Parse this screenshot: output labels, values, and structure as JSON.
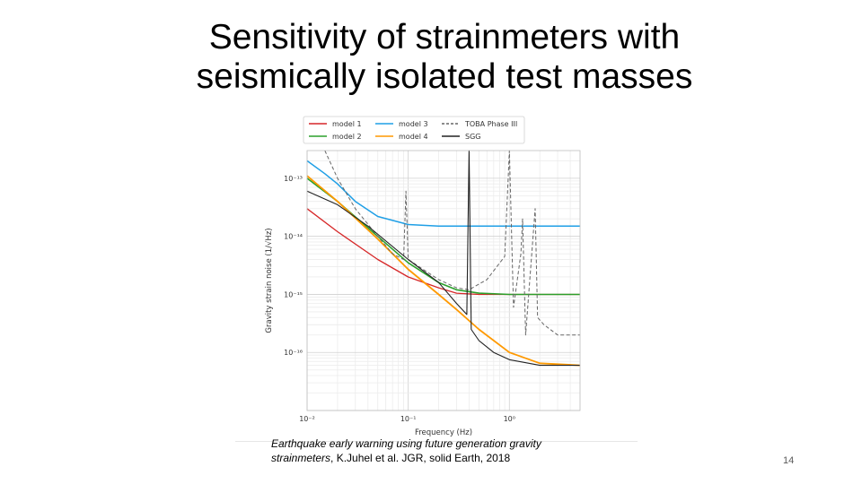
{
  "slide": {
    "title_line1": "Sensitivity of strainmeters with",
    "title_line2": "seismically isolated test masses",
    "caption_italic": "Earthquake early warning using future generation gravity strainmeters",
    "caption_rest": ", K.Juhel et al. JGR, solid Earth, 2018",
    "page_number": "14"
  },
  "chart_data": {
    "type": "line",
    "xlabel": "Frequency (Hz)",
    "ylabel": "Gravity strain noise (1/√Hz)",
    "xscale": "log",
    "yscale": "log",
    "xlim": [
      0.01,
      5
    ],
    "ylim": [
      1e-17,
      3e-13
    ],
    "x_tick_labels": [
      "10⁻²",
      "10⁻¹",
      "10⁰"
    ],
    "y_tick_labels": [
      "10⁻¹³",
      "10⁻¹⁴",
      "10⁻¹⁵",
      "10⁻¹⁶"
    ],
    "legend_position": "top",
    "grid": true,
    "series": [
      {
        "name": "model 1",
        "color": "#d62728",
        "style": "solid",
        "points": [
          [
            0.01,
            3e-14
          ],
          [
            0.02,
            1.2e-14
          ],
          [
            0.05,
            4e-15
          ],
          [
            0.1,
            2e-15
          ],
          [
            0.2,
            1.3e-15
          ],
          [
            0.3,
            1.05e-15
          ],
          [
            0.5,
            1e-15
          ],
          [
            1,
            1e-15
          ],
          [
            2,
            1e-15
          ],
          [
            5,
            1e-15
          ]
        ]
      },
      {
        "name": "model 2",
        "color": "#2ca02c",
        "style": "solid",
        "points": [
          [
            0.01,
            1e-13
          ],
          [
            0.02,
            4e-14
          ],
          [
            0.05,
            1e-14
          ],
          [
            0.1,
            3.5e-15
          ],
          [
            0.2,
            1.6e-15
          ],
          [
            0.3,
            1.2e-15
          ],
          [
            0.5,
            1.05e-15
          ],
          [
            1,
            1e-15
          ],
          [
            2,
            1e-15
          ],
          [
            5,
            1e-15
          ]
        ]
      },
      {
        "name": "model 3",
        "color": "#1f9fe6",
        "style": "solid",
        "points": [
          [
            0.01,
            2e-13
          ],
          [
            0.015,
            1.2e-13
          ],
          [
            0.02,
            8e-14
          ],
          [
            0.03,
            4e-14
          ],
          [
            0.05,
            2.2e-14
          ],
          [
            0.1,
            1.6e-14
          ],
          [
            0.2,
            1.5e-14
          ],
          [
            0.5,
            1.5e-14
          ],
          [
            1,
            1.5e-14
          ],
          [
            2,
            1.5e-14
          ],
          [
            5,
            1.5e-14
          ]
        ]
      },
      {
        "name": "model 4",
        "color": "#ff9900",
        "style": "solid",
        "points": [
          [
            0.01,
            1.1e-13
          ],
          [
            0.02,
            4e-14
          ],
          [
            0.05,
            9e-15
          ],
          [
            0.1,
            2.7e-15
          ],
          [
            0.2,
            1e-15
          ],
          [
            0.3,
            5.5e-16
          ],
          [
            0.5,
            2.5e-16
          ],
          [
            1,
            1e-16
          ],
          [
            2,
            6.5e-17
          ],
          [
            5,
            6e-17
          ]
        ]
      },
      {
        "name": "TOBA Phase III",
        "color": "#666666",
        "style": "dashed",
        "points": [
          [
            0.015,
            3e-13
          ],
          [
            0.02,
            1e-13
          ],
          [
            0.03,
            3e-14
          ],
          [
            0.05,
            1e-14
          ],
          [
            0.07,
            5e-15
          ],
          [
            0.09,
            4e-15
          ],
          [
            0.095,
            6e-14
          ],
          [
            0.1,
            4e-15
          ],
          [
            0.15,
            2.5e-15
          ],
          [
            0.2,
            1.8e-15
          ],
          [
            0.3,
            1.3e-15
          ],
          [
            0.4,
            1.2e-15
          ],
          [
            0.6,
            1.8e-15
          ],
          [
            0.9,
            4.5e-15
          ],
          [
            1.0,
            3e-13
          ],
          [
            1.1,
            6e-16
          ],
          [
            1.3,
            5e-15
          ],
          [
            1.35,
            2e-14
          ],
          [
            1.45,
            2e-16
          ],
          [
            1.8,
            3e-14
          ],
          [
            1.9,
            4e-16
          ],
          [
            2.2,
            3e-16
          ],
          [
            3,
            2e-16
          ],
          [
            5,
            2e-16
          ]
        ]
      },
      {
        "name": "SGG",
        "color": "#222222",
        "style": "solid",
        "points": [
          [
            0.01,
            6e-14
          ],
          [
            0.02,
            3.5e-14
          ],
          [
            0.04,
            1.5e-14
          ],
          [
            0.1,
            4e-15
          ],
          [
            0.2,
            1.6e-15
          ],
          [
            0.3,
            7e-16
          ],
          [
            0.38,
            4.5e-16
          ],
          [
            0.4,
            3e-13
          ],
          [
            0.42,
            2.5e-16
          ],
          [
            0.5,
            1.6e-16
          ],
          [
            0.7,
            1e-16
          ],
          [
            1,
            7.5e-17
          ],
          [
            2,
            6e-17
          ],
          [
            5,
            6e-17
          ]
        ]
      }
    ]
  }
}
